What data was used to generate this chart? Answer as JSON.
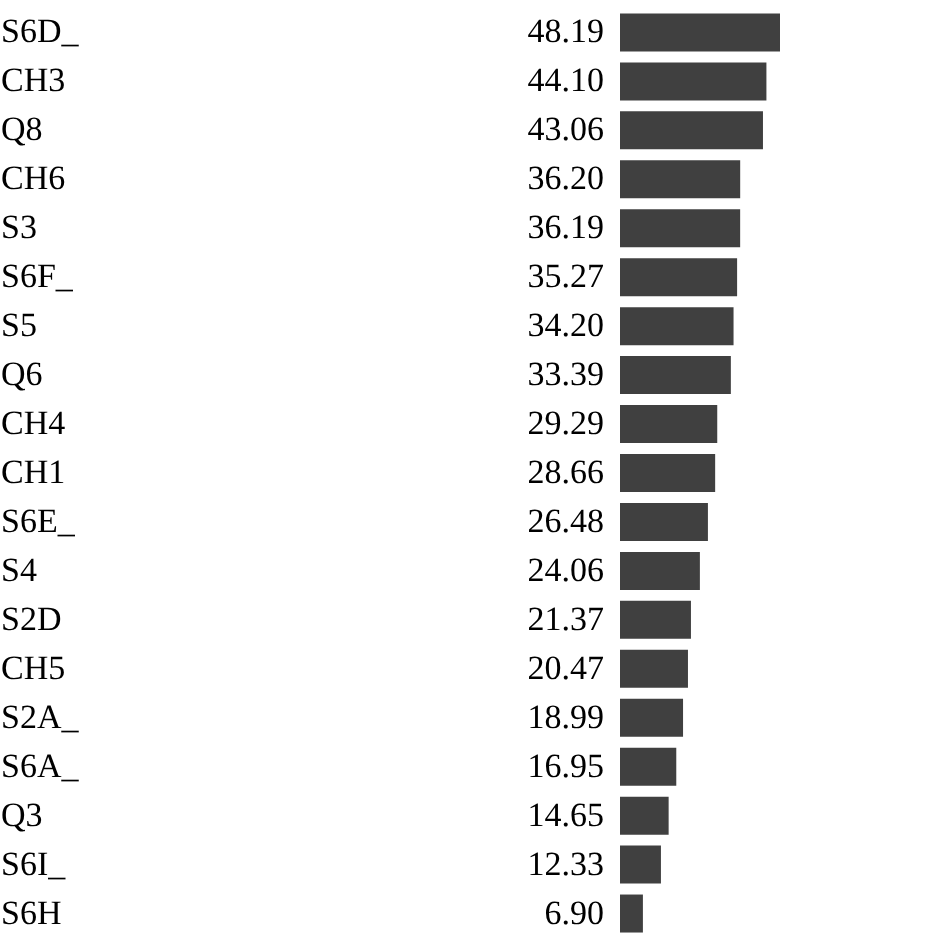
{
  "chart_data": {
    "type": "bar",
    "orientation": "horizontal",
    "categories": [
      "S6D_",
      "CH3",
      "Q8",
      "CH6",
      "S3",
      "S6F_",
      "S5",
      "Q6",
      "CH4",
      "CH1",
      "S6E_",
      "S4",
      "S2D",
      "CH5",
      "S2A_",
      "S6A_",
      "Q3",
      "S6I_",
      "S6H"
    ],
    "values": [
      48.19,
      44.1,
      43.06,
      36.2,
      36.19,
      35.27,
      34.2,
      33.39,
      29.29,
      28.66,
      26.48,
      24.06,
      21.37,
      20.47,
      18.99,
      16.95,
      14.65,
      12.33,
      6.9
    ],
    "value_labels": [
      "48.19",
      "44.10",
      "43.06",
      "36.20",
      "36.19",
      "35.27",
      "34.20",
      "33.39",
      "29.29",
      "28.66",
      "26.48",
      "24.06",
      "21.37",
      "20.47",
      "18.99",
      "16.95",
      "14.65",
      "12.33",
      "6.90"
    ],
    "color": "#404040"
  }
}
